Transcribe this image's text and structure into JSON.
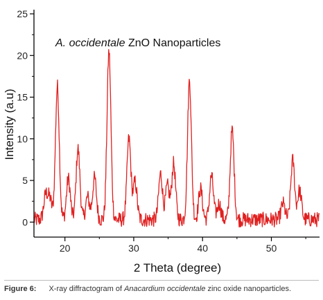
{
  "chart_data": {
    "type": "line",
    "title": "",
    "annotation": {
      "italic_part": "A. occidentale",
      "plain_part": " ZnO Nanoparticles"
    },
    "xlabel": "2 Theta (degree)",
    "ylabel": "Intensity (a.u)",
    "xlim": [
      15.5,
      57
    ],
    "ylim": [
      -1.8,
      25.5
    ],
    "xticks": [
      20,
      30,
      40,
      50
    ],
    "yticks": [
      0,
      5,
      10,
      15,
      20,
      25
    ],
    "grid": false,
    "legend": "none",
    "series": [
      {
        "color": "#e02020",
        "baseline": 0.3,
        "noise_amplitude": 0.9,
        "peaks": [
          {
            "x": 17.2,
            "y": 3.2
          },
          {
            "x": 17.8,
            "y": 2.8
          },
          {
            "x": 18.9,
            "y": 16.3
          },
          {
            "x": 20.5,
            "y": 5.2
          },
          {
            "x": 21.9,
            "y": 8.8
          },
          {
            "x": 23.3,
            "y": 3.0
          },
          {
            "x": 24.3,
            "y": 5.3
          },
          {
            "x": 26.4,
            "y": 20.5
          },
          {
            "x": 29.3,
            "y": 10.0
          },
          {
            "x": 30.2,
            "y": 4.8
          },
          {
            "x": 33.9,
            "y": 5.8
          },
          {
            "x": 34.9,
            "y": 4.3
          },
          {
            "x": 35.8,
            "y": 7.0
          },
          {
            "x": 38.1,
            "y": 17.0
          },
          {
            "x": 39.7,
            "y": 4.0
          },
          {
            "x": 41.3,
            "y": 5.5
          },
          {
            "x": 42.4,
            "y": 2.2
          },
          {
            "x": 44.3,
            "y": 11.0
          },
          {
            "x": 51.7,
            "y": 2.2
          },
          {
            "x": 53.1,
            "y": 7.4
          },
          {
            "x": 54.1,
            "y": 3.8
          }
        ]
      }
    ]
  },
  "caption": {
    "label": "Figure 6:",
    "text_before": "X-ray diffractogram of ",
    "italic": "Anacardium occidentale",
    "text_after": " zinc oxide nanoparticles."
  }
}
